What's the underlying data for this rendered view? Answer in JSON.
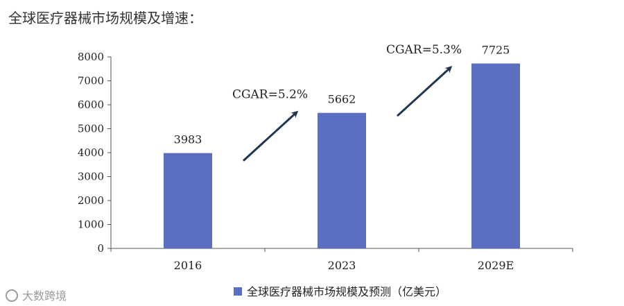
{
  "page_title": "全球医疗器械市场规模及增速：",
  "watermark": "大数跨境",
  "colors": {
    "bar": "#5b6fc0",
    "axis": "#555555",
    "arrow": "#1f3550"
  },
  "chart_data": {
    "type": "bar",
    "categories": [
      "2016",
      "2023",
      "2029E"
    ],
    "series": [
      {
        "name": "全球医疗器械市场规模及预测（亿美元）",
        "values": [
          3983,
          5662,
          7725
        ]
      }
    ],
    "data_labels": [
      "3983",
      "5662",
      "7725"
    ],
    "ylim": [
      0,
      8000
    ],
    "yticks": [
      "0",
      "1000",
      "2000",
      "3000",
      "4000",
      "5000",
      "6000",
      "7000",
      "8000"
    ],
    "grid": false,
    "legend": {
      "position": "bottom-center",
      "label": "全球医疗器械市场规模及预测（亿美元）"
    },
    "annotations": [
      {
        "text": "CGAR=5.2%",
        "from": "2016",
        "to": "2023"
      },
      {
        "text": "CGAR=5.3%",
        "from": "2023",
        "to": "2029E"
      }
    ]
  }
}
